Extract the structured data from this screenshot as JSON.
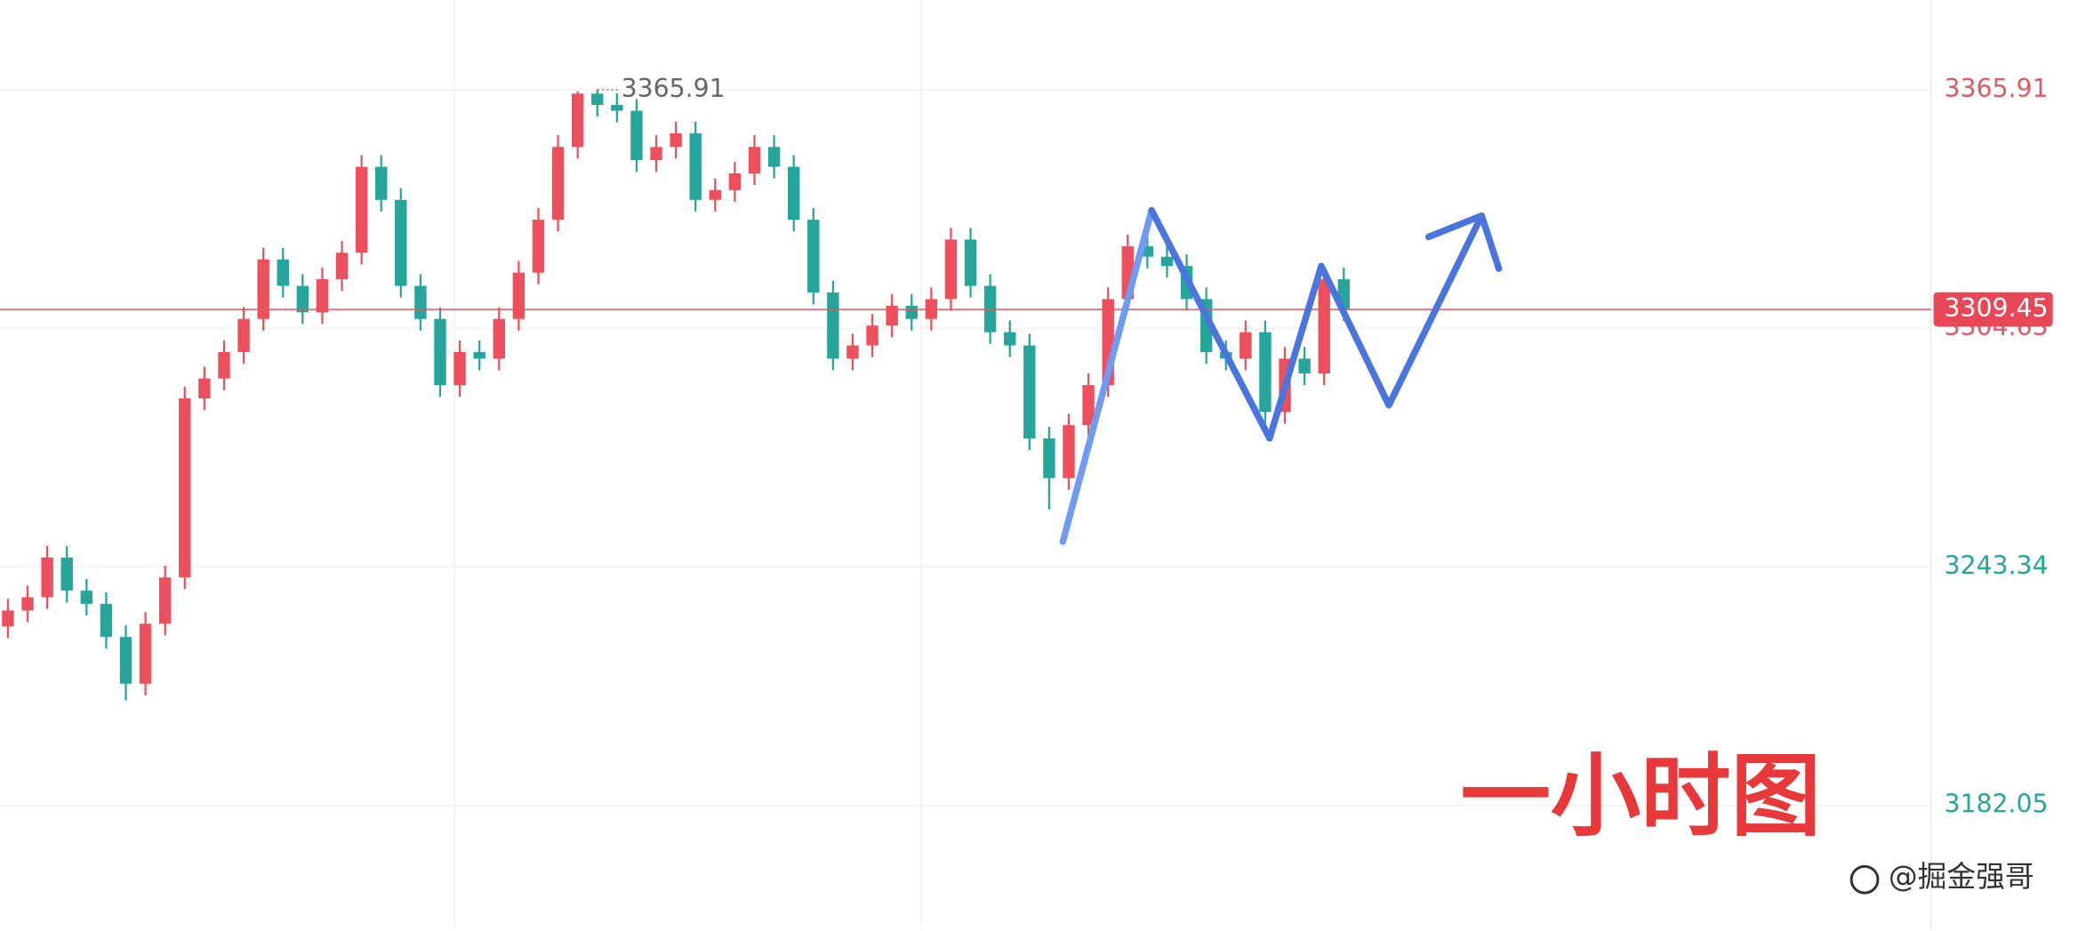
{
  "chart_data": {
    "type": "candlestick",
    "ylim": [
      3150,
      3388.7
    ],
    "yticks": [
      3182.05,
      3243.34,
      3304.63,
      3365.91
    ],
    "ytick_colors": [
      "#26a69a",
      "#26a69a",
      "#e05a66",
      "#e05a66"
    ],
    "grid": true,
    "up_color": "#ee4f5c",
    "down_color": "#26a69a",
    "open": [
      3228.0,
      3232.1,
      3235.5,
      3245.7,
      3237.2,
      3233.8,
      3225.3,
      3213.3,
      3228.7,
      3240.6,
      3286.6,
      3291.7,
      3298.5,
      3307.0,
      3322.3,
      3315.5,
      3308.7,
      3317.2,
      3324.0,
      3346.1,
      3337.6,
      3315.5,
      3307.0,
      3290.0,
      3298.5,
      3296.8,
      3307.0,
      3318.9,
      3332.5,
      3351.2,
      3364.9,
      3362.0,
      3360.5,
      3347.8,
      3351.2,
      3354.7,
      3337.6,
      3340.1,
      3344.4,
      3351.2,
      3346.1,
      3332.5,
      3313.8,
      3296.8,
      3300.2,
      3305.3,
      3310.4,
      3307.0,
      3312.1,
      3327.4,
      3315.5,
      3303.6,
      3300.2,
      3276.3,
      3266.1,
      3279.7,
      3290.0,
      3312.1,
      3325.7,
      3323.0,
      3320.6,
      3312.1,
      3298.5,
      3296.8,
      3303.6,
      3283.1,
      3296.8,
      3293.0,
      3317.2
    ],
    "high": [
      3235.1,
      3238.5,
      3248.7,
      3248.7,
      3240.2,
      3236.8,
      3228.3,
      3231.7,
      3243.6,
      3289.6,
      3294.7,
      3301.5,
      3310.0,
      3325.3,
      3325.3,
      3318.5,
      3320.2,
      3327.0,
      3349.1,
      3349.1,
      3340.6,
      3318.5,
      3310.0,
      3301.5,
      3301.5,
      3310.0,
      3321.9,
      3335.5,
      3354.2,
      3365.5,
      3365.91,
      3365.0,
      3363.5,
      3354.2,
      3357.7,
      3357.7,
      3343.1,
      3347.4,
      3354.2,
      3354.2,
      3349.1,
      3335.5,
      3316.8,
      3303.2,
      3308.3,
      3313.4,
      3313.4,
      3315.1,
      3330.4,
      3330.4,
      3318.5,
      3306.6,
      3303.2,
      3279.3,
      3282.7,
      3293.0,
      3315.1,
      3328.7,
      3328.7,
      3326.0,
      3323.6,
      3315.1,
      3301.5,
      3306.6,
      3306.6,
      3299.8,
      3299.8,
      3320.2,
      3320.2
    ],
    "low": [
      3225.0,
      3229.1,
      3232.5,
      3234.2,
      3230.8,
      3222.3,
      3209.0,
      3210.3,
      3225.7,
      3237.6,
      3283.6,
      3288.7,
      3295.5,
      3304.0,
      3312.5,
      3305.7,
      3305.7,
      3314.2,
      3321.0,
      3334.6,
      3312.5,
      3304.0,
      3287.0,
      3287.0,
      3293.8,
      3293.8,
      3304.0,
      3315.9,
      3329.5,
      3348.2,
      3359.0,
      3357.5,
      3344.8,
      3344.8,
      3348.2,
      3334.6,
      3334.6,
      3337.1,
      3341.4,
      3343.1,
      3329.5,
      3310.8,
      3293.8,
      3293.8,
      3297.2,
      3302.3,
      3304.0,
      3304.0,
      3309.1,
      3312.5,
      3300.6,
      3297.2,
      3273.3,
      3258.0,
      3263.1,
      3276.7,
      3287.0,
      3309.1,
      3320.0,
      3317.6,
      3309.1,
      3295.5,
      3293.8,
      3293.8,
      3280.1,
      3280.1,
      3290.0,
      3290.0,
      3306.5
    ],
    "close": [
      3232.1,
      3235.5,
      3245.7,
      3237.2,
      3233.8,
      3225.3,
      3213.3,
      3228.7,
      3240.6,
      3286.6,
      3291.7,
      3298.5,
      3307.0,
      3322.3,
      3315.5,
      3308.7,
      3317.2,
      3324.0,
      3346.1,
      3337.6,
      3315.5,
      3307.0,
      3290.0,
      3298.5,
      3296.8,
      3307.0,
      3318.9,
      3332.5,
      3351.2,
      3364.9,
      3362.0,
      3360.5,
      3347.8,
      3351.2,
      3354.7,
      3337.6,
      3340.1,
      3344.4,
      3351.2,
      3346.1,
      3332.5,
      3313.8,
      3296.8,
      3300.2,
      3305.3,
      3310.4,
      3307.0,
      3312.1,
      3327.4,
      3315.5,
      3303.6,
      3300.2,
      3276.3,
      3266.1,
      3279.7,
      3290.0,
      3312.1,
      3325.7,
      3323.0,
      3320.6,
      3312.1,
      3298.5,
      3296.8,
      3303.6,
      3283.1,
      3296.8,
      3293.0,
      3317.2,
      3309.45
    ],
    "annotation": "一小时图",
    "watermark": "@掘金强哥"
  }
}
